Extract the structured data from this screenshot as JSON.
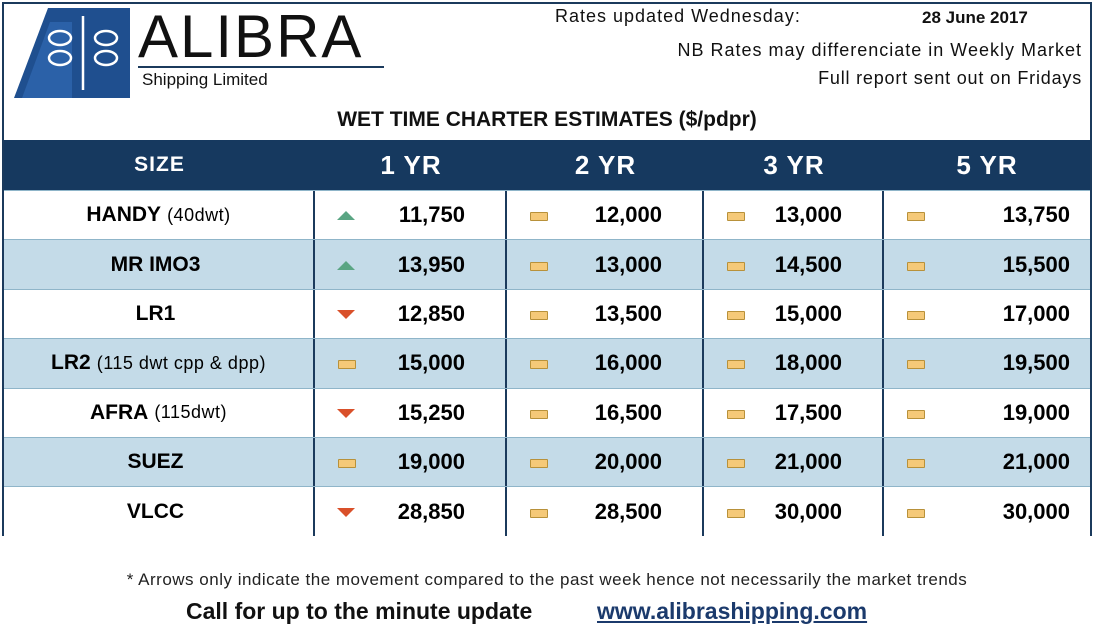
{
  "header": {
    "brand": "ALIBRA",
    "subtitle": "Shipping Limited",
    "updated_label": "Rates updated Wednesday:",
    "updated_date": "28 June 2017",
    "note_1": "NB Rates may differenciate in Weekly Market",
    "note_2": "Full report sent out on Fridays"
  },
  "table": {
    "title": "WET TIME CHARTER ESTIMATES ($/pdpr)",
    "columns": [
      "SIZE",
      "1 YR",
      "2 YR",
      "3 YR",
      "5 YR"
    ],
    "rows": [
      {
        "size": "HANDY",
        "detail": "(40dwt)",
        "values": [
          "11,750",
          "12,000",
          "13,000",
          "13,750"
        ],
        "trend": [
          "up",
          "flat",
          "flat",
          "flat"
        ]
      },
      {
        "size": "MR IMO3",
        "detail": "",
        "values": [
          "13,950",
          "13,000",
          "14,500",
          "15,500"
        ],
        "trend": [
          "up",
          "flat",
          "flat",
          "flat"
        ]
      },
      {
        "size": "LR1",
        "detail": "",
        "values": [
          "12,850",
          "13,500",
          "15,000",
          "17,000"
        ],
        "trend": [
          "down",
          "flat",
          "flat",
          "flat"
        ]
      },
      {
        "size": "LR2",
        "detail": "(115 dwt cpp & dpp)",
        "values": [
          "15,000",
          "16,000",
          "18,000",
          "19,500"
        ],
        "trend": [
          "flat",
          "flat",
          "flat",
          "flat"
        ]
      },
      {
        "size": "AFRA",
        "detail": "(115dwt)",
        "values": [
          "15,250",
          "16,500",
          "17,500",
          "19,000"
        ],
        "trend": [
          "down",
          "flat",
          "flat",
          "flat"
        ]
      },
      {
        "size": "SUEZ",
        "detail": "",
        "values": [
          "19,000",
          "20,000",
          "21,000",
          "21,000"
        ],
        "trend": [
          "flat",
          "flat",
          "flat",
          "flat"
        ]
      },
      {
        "size": "VLCC",
        "detail": "",
        "values": [
          "28,850",
          "28,500",
          "30,000",
          "30,000"
        ],
        "trend": [
          "down",
          "flat",
          "flat",
          "flat"
        ]
      }
    ]
  },
  "footer": {
    "footnote": "* Arrows only indicate the movement compared to the past week hence not necessarily the market trends",
    "cta": "Call for up to the minute update",
    "link": "www.alibrashipping.com"
  },
  "colors": {
    "header_bg": "#16395f",
    "row_alt": "#c4dbe8",
    "up": "#5aa583",
    "down": "#d9502a",
    "flat": "#f5c978"
  }
}
